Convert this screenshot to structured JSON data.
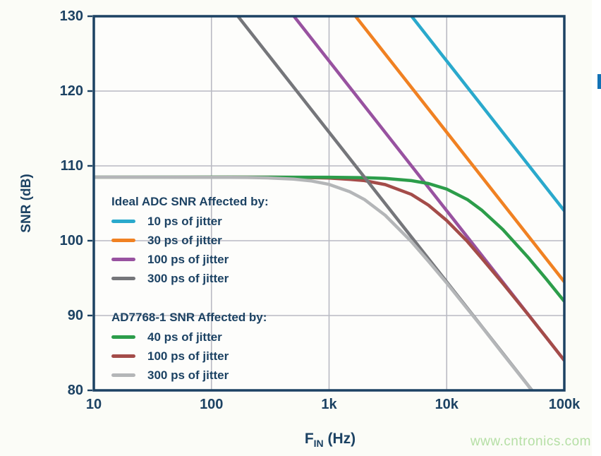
{
  "figure": {
    "watermark": "www.cntronics.com",
    "watermark_color": "#b5dfa5",
    "background": "#fbfcf7",
    "accent_blue_marker": "#1272b5"
  },
  "chart_data": {
    "type": "line",
    "title": "",
    "xlabel": {
      "main": "F",
      "sub": "IN",
      "rest": " (Hz)"
    },
    "ylabel": "SNR (dB)",
    "x_scale": "log",
    "xlim": [
      10,
      100000
    ],
    "ylim": [
      80,
      130
    ],
    "grid": true,
    "legend_position": "inside-left",
    "colors": {
      "axis": "#1c4263",
      "grid": "#b9bac3",
      "plot_bg": "#fdfdfb"
    },
    "x_ticks": [
      {
        "value": 10,
        "label": "10"
      },
      {
        "value": 100,
        "label": "100"
      },
      {
        "value": 1000,
        "label": "1k"
      },
      {
        "value": 10000,
        "label": "10k"
      },
      {
        "value": 100000,
        "label": "100k"
      }
    ],
    "y_ticks": [
      {
        "value": 80,
        "label": "80"
      },
      {
        "value": 90,
        "label": "90"
      },
      {
        "value": 100,
        "label": "100"
      },
      {
        "value": 110,
        "label": "110"
      },
      {
        "value": 120,
        "label": "120"
      },
      {
        "value": 130,
        "label": "130"
      }
    ],
    "legend_groups": [
      {
        "header": "Ideal ADC SNR Affected by:",
        "items": [
          {
            "label": "10 ps of jitter",
            "color": "#2aa9cc"
          },
          {
            "label": "30 ps of jitter",
            "color": "#f08122"
          },
          {
            "label": "100 ps of jitter",
            "color": "#9852a0"
          },
          {
            "label": "300 ps of jitter",
            "color": "#75767a"
          }
        ]
      },
      {
        "header": "AD7768-1 SNR Affected by:",
        "items": [
          {
            "label": "40 ps of jitter",
            "color": "#2c9d4a"
          },
          {
            "label": "100 ps of jitter",
            "color": "#a44c49"
          },
          {
            "label": "300 ps of jitter",
            "color": "#b4b6b8"
          }
        ]
      }
    ],
    "series": [
      {
        "name": "ideal-10ps-jitter",
        "legend": "10 ps of jitter",
        "color": "#2aa9cc",
        "points": [
          [
            5033,
            130
          ],
          [
            100000,
            104.0
          ]
        ]
      },
      {
        "name": "ideal-30ps-jitter",
        "legend": "30 ps of jitter",
        "color": "#f08122",
        "points": [
          [
            1678,
            130
          ],
          [
            100000,
            94.5
          ]
        ]
      },
      {
        "name": "ideal-100ps-jitter",
        "legend": "100 ps of jitter",
        "color": "#9852a0",
        "points": [
          [
            503,
            130
          ],
          [
            100000,
            84.0
          ]
        ]
      },
      {
        "name": "ad7768-1-100ps-jitter",
        "legend": "100 ps of jitter",
        "color": "#a44c49",
        "points": [
          [
            10,
            108.5
          ],
          [
            100,
            108.5
          ],
          [
            300,
            108.49
          ],
          [
            500,
            108.47
          ],
          [
            700,
            108.43
          ],
          [
            1000,
            108.38
          ],
          [
            1500,
            108.2
          ],
          [
            2000,
            108.03
          ],
          [
            3000,
            107.5
          ],
          [
            5000,
            106.2
          ],
          [
            7000,
            104.75
          ],
          [
            10000,
            102.7
          ],
          [
            15000,
            99.9
          ],
          [
            20000,
            97.6
          ],
          [
            30000,
            94.3
          ],
          [
            50000,
            90.0
          ],
          [
            70000,
            87.1
          ],
          [
            100000,
            84.0
          ]
        ]
      },
      {
        "name": "ad7768-1-40ps-jitter",
        "legend": "40 ps of jitter",
        "color": "#2c9d4a",
        "points": [
          [
            10,
            108.5
          ],
          [
            100,
            108.5
          ],
          [
            1000,
            108.48
          ],
          [
            2000,
            108.42
          ],
          [
            3000,
            108.33
          ],
          [
            5000,
            108.03
          ],
          [
            7000,
            107.64
          ],
          [
            10000,
            106.9
          ],
          [
            15000,
            105.5
          ],
          [
            20000,
            104.05
          ],
          [
            30000,
            101.5
          ],
          [
            50000,
            97.65
          ],
          [
            70000,
            94.9
          ],
          [
            100000,
            91.9
          ]
        ]
      },
      {
        "name": "ideal-300ps-jitter",
        "legend": "300 ps of jitter",
        "color": "#75767a",
        "points": [
          [
            168,
            130
          ],
          [
            100000,
            74.5
          ]
        ]
      },
      {
        "name": "ad7768-1-300ps-jitter",
        "legend": "300 ps of jitter",
        "color": "#b4b6b8",
        "points": [
          [
            10,
            108.5
          ],
          [
            100,
            108.48
          ],
          [
            200,
            108.45
          ],
          [
            300,
            108.4
          ],
          [
            500,
            108.23
          ],
          [
            700,
            108.0
          ],
          [
            1000,
            107.53
          ],
          [
            1500,
            106.55
          ],
          [
            2000,
            105.5
          ],
          [
            3000,
            103.4
          ],
          [
            5000,
            99.9
          ],
          [
            7000,
            97.25
          ],
          [
            10000,
            94.35
          ],
          [
            15000,
            90.9
          ],
          [
            20000,
            88.45
          ],
          [
            30000,
            84.9
          ],
          [
            50000,
            80.5
          ],
          [
            60000,
            78.9
          ]
        ]
      }
    ]
  }
}
